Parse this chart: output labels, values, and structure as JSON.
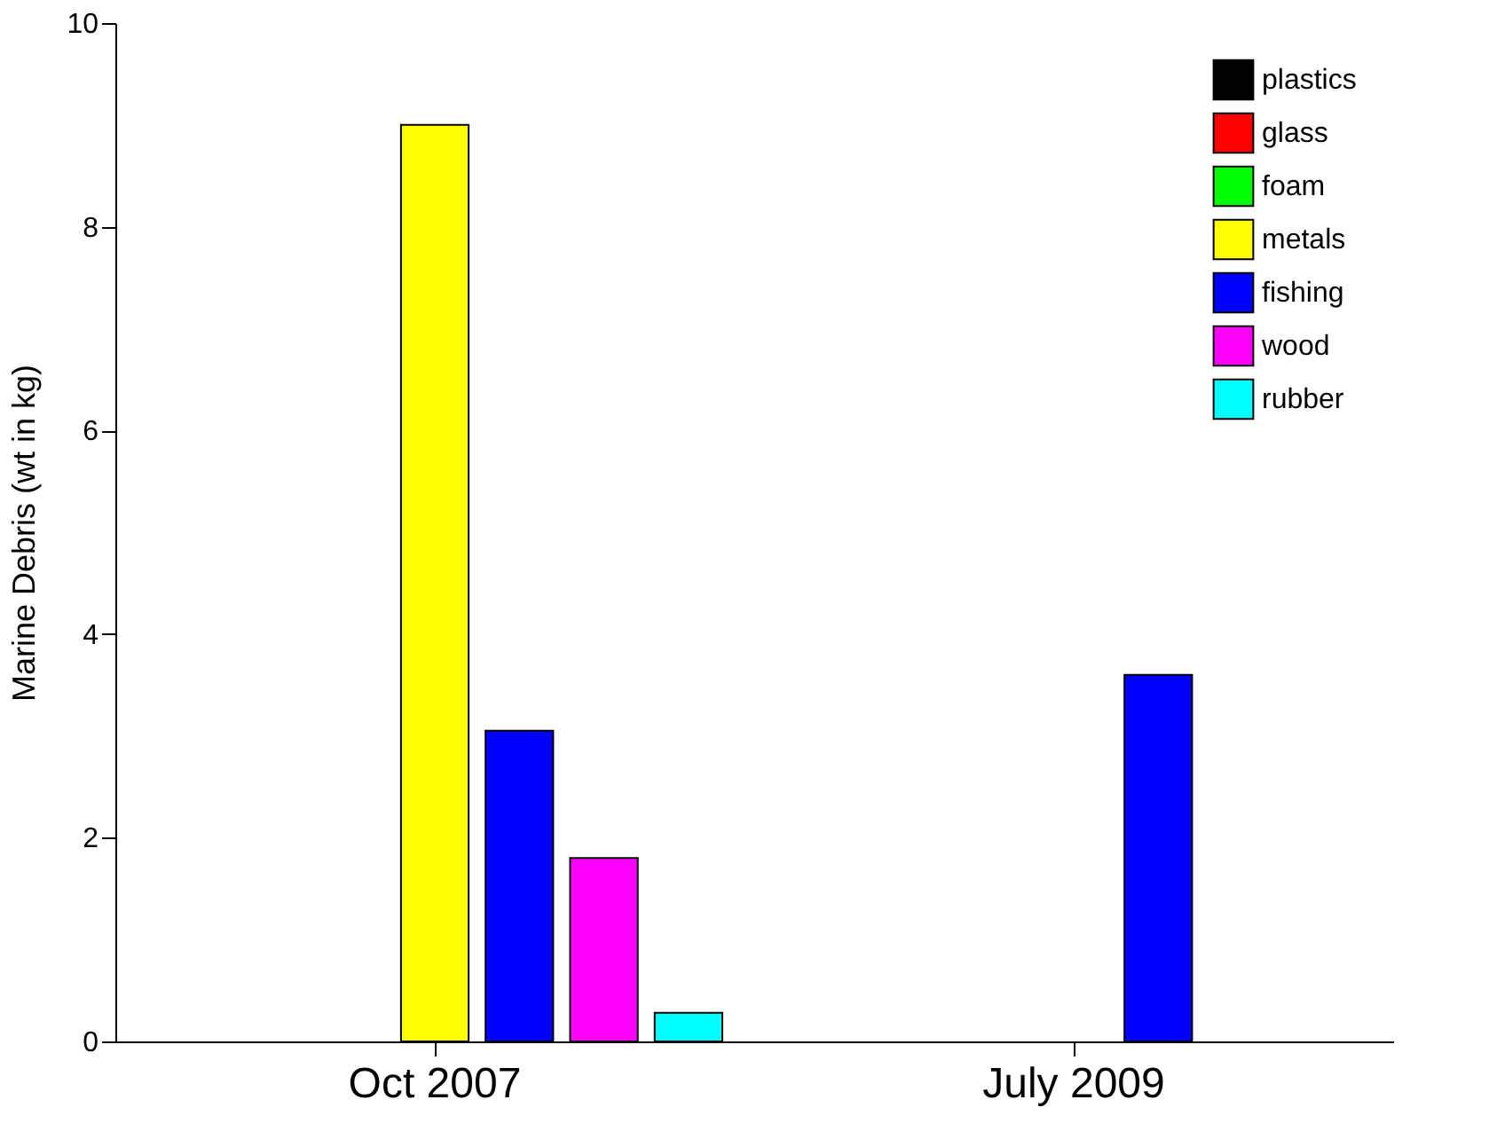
{
  "chart_data": {
    "type": "bar",
    "ylabel": "Marine Debris (wt in kg)",
    "categories": [
      "Oct 2007",
      "July 2009"
    ],
    "series": [
      {
        "name": "plastics",
        "color": "#000000",
        "values": [
          null,
          null
        ]
      },
      {
        "name": "glass",
        "color": "#ff0000",
        "values": [
          null,
          null
        ]
      },
      {
        "name": "foam",
        "color": "#00ff00",
        "values": [
          null,
          null
        ]
      },
      {
        "name": "metals",
        "color": "#ffff00",
        "values": [
          9.0,
          null
        ]
      },
      {
        "name": "fishing",
        "color": "#0000ff",
        "values": [
          3.05,
          3.6
        ]
      },
      {
        "name": "wood",
        "color": "#ff00ff",
        "values": [
          1.8,
          null
        ]
      },
      {
        "name": "rubber",
        "color": "#00ffff",
        "values": [
          0.28,
          null
        ]
      }
    ],
    "ylim": [
      0,
      10
    ],
    "yticks": [
      0,
      2,
      4,
      6,
      8,
      10
    ],
    "grid": false,
    "legend": "top right"
  }
}
